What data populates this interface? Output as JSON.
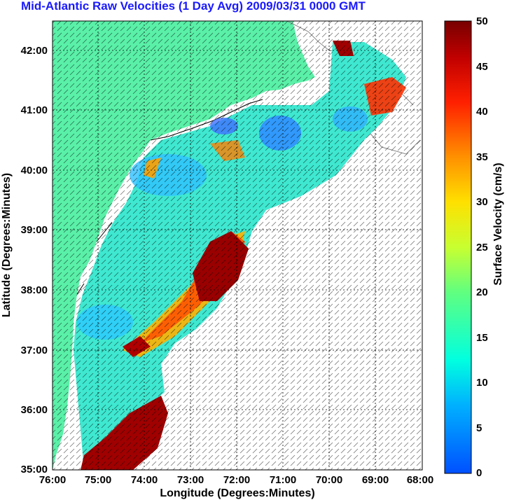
{
  "title": "Mid-Atlantic Raw Velocities (1 Day Avg) 2009/03/31 0000 GMT",
  "map": {
    "xlabel": "Longitude (Degrees:Minutes)",
    "ylabel": "Latitude (Degrees:Minutes)",
    "lon_ticks": [
      "76:00",
      "75:00",
      "74:00",
      "73:00",
      "72:00",
      "71:00",
      "70:00",
      "69:00",
      "68:00"
    ],
    "lat_ticks": [
      "42:00",
      "41:00",
      "40:00",
      "39:00",
      "38:00",
      "37:00",
      "36:00",
      "35:00"
    ],
    "land_color": "#5af0a8",
    "grid": true
  },
  "colorbar": {
    "label": "Surface Velocity (cm/s)",
    "ticks": [
      "50",
      "45",
      "40",
      "35",
      "30",
      "25",
      "20",
      "15",
      "10",
      "5",
      "0"
    ],
    "range": [
      0,
      50
    ],
    "colormap": "jet"
  }
}
